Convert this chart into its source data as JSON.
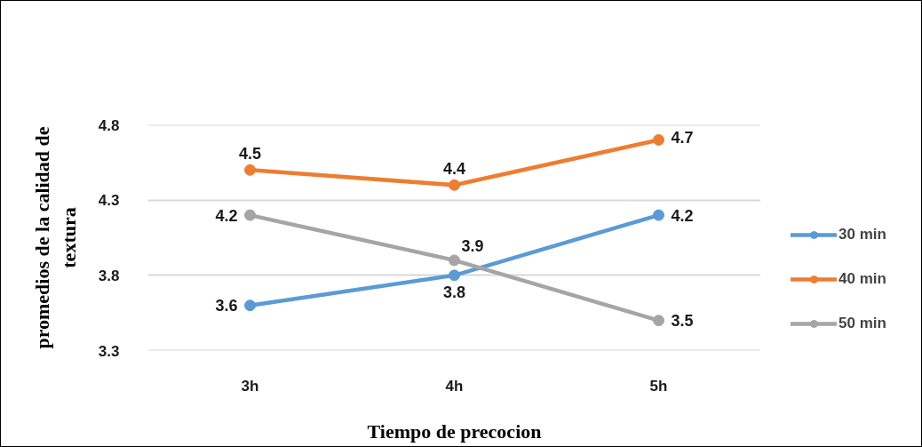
{
  "chart_data": {
    "type": "line",
    "xlabel": "Tiempo de precocion",
    "ylabel": "promedios de la calidad de textura",
    "categories": [
      "3h",
      "4h",
      "5h"
    ],
    "series": [
      {
        "name": "30 min",
        "color": "#5b9bd5",
        "values": [
          3.6,
          3.8,
          4.2
        ]
      },
      {
        "name": "40 min",
        "color": "#ed7d31",
        "values": [
          4.5,
          4.4,
          4.7
        ]
      },
      {
        "name": "50 min",
        "color": "#a5a5a5",
        "values": [
          4.2,
          3.9,
          3.5
        ]
      }
    ],
    "ylim": [
      3.3,
      4.8
    ],
    "yticks": [
      3.3,
      3.8,
      4.3,
      4.8
    ],
    "grid": "y",
    "legend": "right",
    "marker": "circle",
    "line_style": "solid",
    "data_labels": true
  }
}
